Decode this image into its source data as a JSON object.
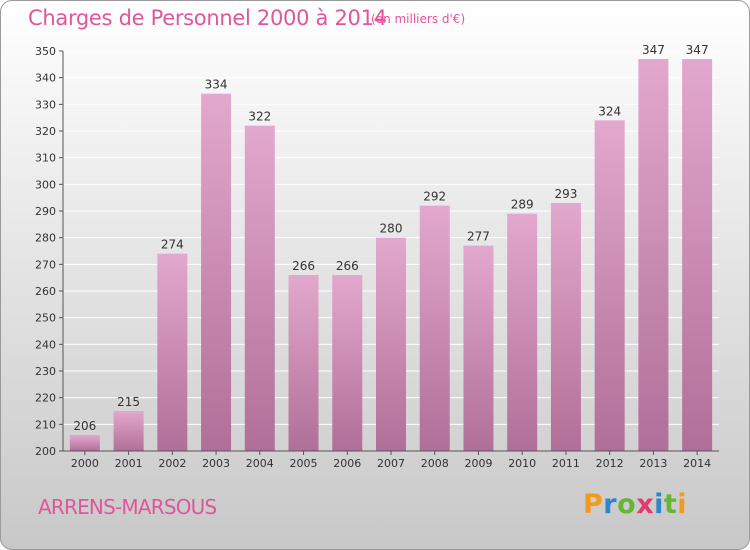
{
  "header": {
    "title": "Charges de Personnel 2000 à 2014",
    "unit": "(en milliers d'€)"
  },
  "footer": {
    "city": "ARRENS-MARSOUS",
    "logo": {
      "letters": [
        "P",
        "r",
        "o",
        "x",
        "i",
        "t",
        "i"
      ],
      "colors": [
        "#f39a1c",
        "#2d86c9",
        "#66b634",
        "#e23a6c",
        "#2d86c9",
        "#66b634",
        "#f39a1c"
      ]
    }
  },
  "colors": {
    "accent": "#e0569a",
    "bar_top": "#e3a8cd",
    "bar_bottom": "#b06f98",
    "grid": "#ffffff"
  },
  "chart_data": {
    "type": "bar",
    "title": "Charges de Personnel 2000 à 2014",
    "subtitle": "(en milliers d'€)",
    "xlabel": "",
    "ylabel": "",
    "categories": [
      "2000",
      "2001",
      "2002",
      "2003",
      "2004",
      "2005",
      "2006",
      "2007",
      "2008",
      "2009",
      "2010",
      "2011",
      "2012",
      "2013",
      "2014"
    ],
    "values": [
      206,
      215,
      274,
      334,
      322,
      266,
      266,
      280,
      292,
      277,
      289,
      293,
      324,
      347,
      347
    ],
    "ylim": [
      200,
      350
    ],
    "yticks": [
      200,
      210,
      220,
      230,
      240,
      250,
      260,
      270,
      280,
      290,
      300,
      310,
      320,
      330,
      340,
      350
    ],
    "grid": true,
    "legend": "none"
  }
}
